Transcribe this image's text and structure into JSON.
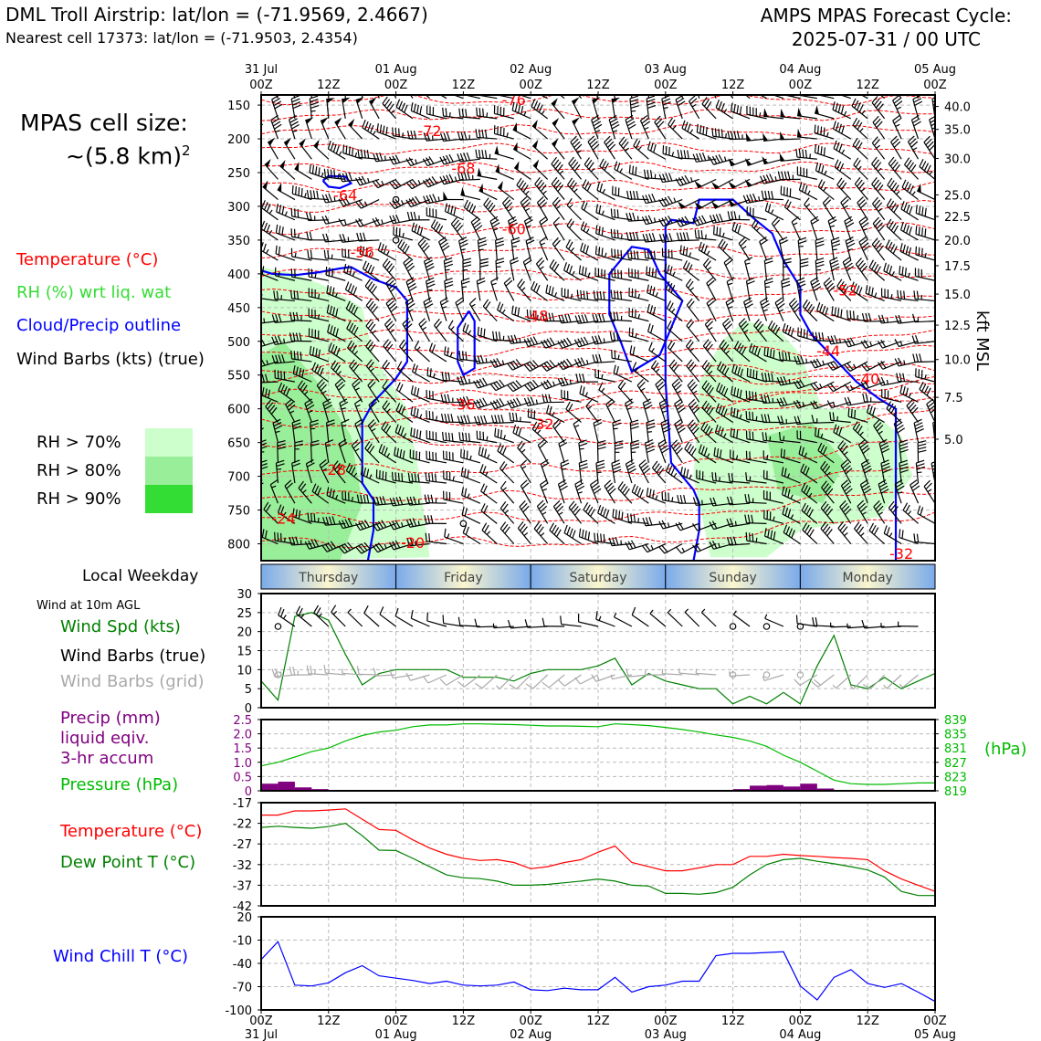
{
  "header": {
    "left_title": "DML Troll Airstrip: lat/lon = (-71.9569, 2.4667)",
    "left_subtitle": "Nearest cell 17373: lat/lon = (-71.9503, 2.4354)",
    "right_title_1": "AMPS MPAS Forecast Cycle:",
    "right_title_2": "2025-07-31 / 00 UTC"
  },
  "cell_size": {
    "line1": "MPAS cell size:",
    "line2": "~(5.8 km)",
    "exponent": "2"
  },
  "legend": {
    "temperature": "Temperature (°C)",
    "rh": "RH (%) wrt liq. wat",
    "cloud": "Cloud/Precip outline",
    "wind_barbs": "Wind Barbs (kts) (true)",
    "rh70": "RH > 70%",
    "rh80": "RH > 80%",
    "rh90": "RH > 90%"
  },
  "colors": {
    "temperature": "#ff0000",
    "rh_text": "#33dd33",
    "cloud": "#0000ff",
    "rh70": "#ccffcc",
    "rh80": "#99ee99",
    "rh90": "#33dd33",
    "wind_speed": "#008000",
    "grid_barb": "#aaaaaa",
    "precip": "#800080",
    "pressure": "#00bb00",
    "dewpoint": "#008000",
    "windchill": "#0000ff"
  },
  "side_labels": {
    "local_weekday": "Local Weekday",
    "wind_10m": "Wind at 10m AGL",
    "wind_spd": "Wind Spd (kts)",
    "wind_barbs_true": "Wind Barbs (true)",
    "wind_barbs_grid": "Wind Barbs (grid)",
    "precip_1": "Precip (mm)",
    "precip_2": "liquid eqiv.",
    "precip_3": "3-hr accum",
    "pressure": "Pressure (hPa)",
    "pressure_unit": "(hPa)",
    "temperature": "Temperature (°C)",
    "dewpoint": "Dew Point T (°C)",
    "windchill": "Wind Chill T (°C)",
    "kft": "kft MSL"
  },
  "time_axis": {
    "tick_labels": [
      "00Z",
      "12Z",
      "00Z",
      "12Z",
      "00Z",
      "12Z",
      "00Z",
      "12Z",
      "00Z",
      "12Z",
      "00Z"
    ],
    "date_labels": [
      "31 Jul",
      "",
      "01 Aug",
      "",
      "02 Aug",
      "",
      "03 Aug",
      "",
      "04 Aug",
      "",
      "05 Aug"
    ],
    "weekdays": [
      "Thursday",
      "Friday",
      "Saturday",
      "Sunday",
      "Monday"
    ]
  },
  "chart_data": [
    {
      "type": "heatmap",
      "name": "time-pressure cross section",
      "x_range_hours": [
        0,
        120
      ],
      "y_axis_hpa": {
        "ticks": [
          150,
          200,
          250,
          300,
          350,
          400,
          450,
          500,
          550,
          600,
          650,
          700,
          750,
          800
        ],
        "range": [
          135,
          825
        ]
      },
      "y2_axis_kft": {
        "ticks": [
          "40.0",
          "35.0",
          "30.0",
          "25.0",
          "22.5",
          "20.0",
          "17.5",
          "15.0",
          "12.5",
          "10.0",
          "7.5",
          "5.0"
        ],
        "hpa": [
          152,
          186,
          229,
          283,
          315,
          350,
          388,
          430,
          476,
          527,
          583,
          645
        ]
      },
      "temperature_contour_labels": [
        {
          "t": 45,
          "p": 142,
          "label": "-76"
        },
        {
          "t": 30,
          "p": 188,
          "label": "-72"
        },
        {
          "t": 36,
          "p": 243,
          "label": "-68"
        },
        {
          "t": 15,
          "p": 283,
          "label": "-64"
        },
        {
          "t": 45,
          "p": 333,
          "label": "-60"
        },
        {
          "t": 18,
          "p": 368,
          "label": "-56"
        },
        {
          "t": 104,
          "p": 424,
          "label": "-52"
        },
        {
          "t": 49,
          "p": 462,
          "label": "-48"
        },
        {
          "t": 101,
          "p": 514,
          "label": "-44"
        },
        {
          "t": 108,
          "p": 555,
          "label": "-40"
        },
        {
          "t": 36,
          "p": 593,
          "label": "-36"
        },
        {
          "t": 50,
          "p": 622,
          "label": "-32"
        },
        {
          "t": 13,
          "p": 690,
          "label": "-28"
        },
        {
          "t": 4,
          "p": 762,
          "label": "-24"
        },
        {
          "t": 27,
          "p": 798,
          "label": "-20"
        },
        {
          "t": 114,
          "p": 814,
          "label": "-32"
        }
      ]
    },
    {
      "type": "line",
      "name": "Wind Spd (kts)",
      "ylim": [
        0,
        30
      ],
      "yticks": [
        0,
        5,
        10,
        15,
        20,
        25,
        30
      ],
      "x": [
        0,
        3,
        6,
        9,
        12,
        15,
        18,
        21,
        24,
        27,
        30,
        33,
        36,
        39,
        42,
        45,
        48,
        51,
        54,
        57,
        60,
        63,
        66,
        69,
        72,
        75,
        78,
        81,
        84,
        87,
        90,
        93,
        96,
        99,
        102,
        105,
        108,
        111,
        114,
        117,
        120
      ],
      "values": [
        7,
        2,
        24,
        25,
        23,
        14,
        6,
        9,
        10,
        10,
        10,
        10,
        8,
        8,
        8,
        7,
        9,
        10,
        10,
        10,
        11,
        13,
        6,
        9,
        7,
        6,
        5,
        5,
        1,
        3,
        1,
        4,
        1,
        11,
        19,
        6,
        5,
        8,
        5,
        7,
        9
      ]
    },
    {
      "type": "bar",
      "name": "Precip (mm)",
      "ylim": [
        0,
        2.5
      ],
      "yticks": [
        0,
        0.5,
        1.0,
        1.5,
        2.0,
        2.5
      ],
      "ytick_labels": [
        "0",
        "0.5",
        "1.0",
        "1.5",
        "2.0",
        "2.5"
      ],
      "x_start": [
        0,
        3,
        6,
        9,
        12,
        15,
        18,
        21,
        24,
        27,
        30,
        33,
        36,
        39,
        42,
        45,
        48,
        51,
        54,
        57,
        60,
        63,
        66,
        69,
        72,
        75,
        78,
        81,
        84,
        87,
        90,
        93,
        96,
        99,
        102,
        105,
        108,
        111,
        114,
        117
      ],
      "values": [
        0.25,
        0.32,
        0.12,
        0.06,
        0,
        0,
        0,
        0,
        0,
        0,
        0,
        0,
        0,
        0,
        0,
        0,
        0,
        0,
        0,
        0,
        0,
        0,
        0,
        0,
        0,
        0,
        0,
        0,
        0.06,
        0.18,
        0.2,
        0.15,
        0.25,
        0.08,
        0.03,
        0,
        0,
        0,
        0,
        0
      ]
    },
    {
      "type": "line",
      "name": "Pressure (hPa)",
      "ylim": [
        819,
        839
      ],
      "yticks": [
        819,
        823,
        827,
        831,
        835,
        839
      ],
      "x": [
        0,
        3,
        6,
        9,
        12,
        15,
        18,
        21,
        24,
        27,
        30,
        33,
        36,
        39,
        42,
        45,
        48,
        51,
        54,
        57,
        60,
        63,
        66,
        69,
        72,
        75,
        78,
        81,
        84,
        87,
        90,
        93,
        96,
        99,
        102,
        105,
        108,
        111,
        114,
        117,
        120
      ],
      "values": [
        826,
        827,
        828.5,
        830,
        831,
        833,
        834.5,
        835.5,
        836,
        837,
        837.5,
        837.5,
        837.8,
        837.8,
        837.7,
        837.6,
        837.4,
        837.2,
        837.2,
        837.1,
        837,
        837.8,
        837.6,
        837.3,
        836.8,
        836.2,
        835.5,
        834.7,
        834,
        833,
        831.5,
        829,
        827,
        824.5,
        822,
        821,
        820.8,
        820.8,
        821,
        821.2,
        821.2
      ]
    },
    {
      "type": "line",
      "name": "Temperature and Dew Point",
      "ylim": [
        -42,
        -17
      ],
      "yticks": [
        -42,
        -37,
        -32,
        -27,
        -22,
        -17
      ],
      "x": [
        0,
        3,
        6,
        9,
        12,
        15,
        18,
        21,
        24,
        27,
        30,
        33,
        36,
        39,
        42,
        45,
        48,
        51,
        54,
        57,
        60,
        63,
        66,
        69,
        72,
        75,
        78,
        81,
        84,
        87,
        90,
        93,
        96,
        99,
        102,
        105,
        108,
        111,
        114,
        117,
        120
      ],
      "series": [
        {
          "name": "Temperature (°C)",
          "values": [
            -20,
            -20,
            -19,
            -19,
            -18.8,
            -18.5,
            -21,
            -23.5,
            -23.7,
            -26,
            -28,
            -29.5,
            -30.5,
            -31,
            -30.8,
            -31.5,
            -33,
            -32.5,
            -31.5,
            -30.8,
            -29,
            -27.5,
            -31.5,
            -32.5,
            -33.5,
            -33.5,
            -32.8,
            -32,
            -32,
            -30,
            -30,
            -29.5,
            -29.8,
            -30,
            -30.3,
            -30.5,
            -30.8,
            -33.5,
            -35.5,
            -37,
            -38.5
          ]
        },
        {
          "name": "Dew Point T (°C)",
          "values": [
            -23,
            -22.7,
            -23,
            -23.2,
            -22.8,
            -22,
            -25,
            -28.5,
            -28.6,
            -30.5,
            -32.5,
            -34.5,
            -35.2,
            -35.4,
            -36,
            -37,
            -37,
            -36.8,
            -36.4,
            -36,
            -35.5,
            -36,
            -37,
            -37.2,
            -39,
            -39,
            -39.2,
            -38.8,
            -37.5,
            -34.5,
            -32,
            -30.8,
            -30.5,
            -31.2,
            -31.8,
            -32.5,
            -33.3,
            -35,
            -38.5,
            -39.5,
            -39.5
          ]
        }
      ]
    },
    {
      "type": "line",
      "name": "Wind Chill T (°C)",
      "ylim": [
        -100,
        20
      ],
      "yticks": [
        -100,
        -70,
        -40,
        -10,
        20
      ],
      "x": [
        0,
        3,
        6,
        9,
        12,
        15,
        18,
        21,
        24,
        27,
        30,
        33,
        36,
        39,
        42,
        45,
        48,
        51,
        54,
        57,
        60,
        63,
        66,
        69,
        72,
        75,
        78,
        81,
        84,
        87,
        90,
        93,
        96,
        99,
        102,
        105,
        108,
        111,
        114,
        117,
        120
      ],
      "values": [
        -35,
        -12,
        -68,
        -69,
        -65,
        -52,
        -43,
        -56,
        -59,
        -62,
        -66,
        -63,
        -68,
        -69,
        -68,
        -64,
        -74,
        -75,
        -72,
        -74,
        -74,
        -58,
        -77,
        -70,
        -68,
        -63,
        -63,
        -30,
        -27,
        -27,
        -26,
        -25,
        -69,
        -87,
        -58,
        -48,
        -66,
        -71,
        -66,
        -77,
        -89
      ]
    }
  ]
}
